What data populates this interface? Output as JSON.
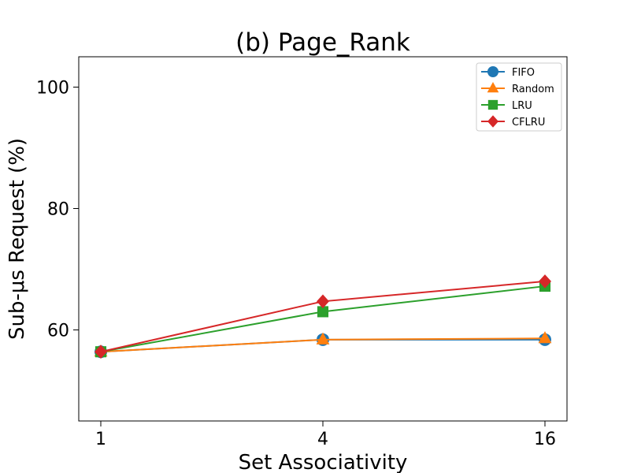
{
  "chart_data": {
    "type": "line",
    "title": "(b) Page_Rank",
    "xlabel": "Set Associativity",
    "ylabel": "Sub-μs Request (%)",
    "x": [
      "1",
      "4",
      "16"
    ],
    "ylim": [
      45,
      105
    ],
    "yticks": [
      60,
      80,
      100
    ],
    "legend_position": "top-right",
    "series": [
      {
        "name": "FIFO",
        "marker": "circle",
        "color": "#1f77b4",
        "values": [
          56.4,
          58.4,
          58.4
        ]
      },
      {
        "name": "Random",
        "marker": "triangle",
        "color": "#ff7f0e",
        "values": [
          56.4,
          58.4,
          58.6
        ]
      },
      {
        "name": "LRU",
        "marker": "square",
        "color": "#2ca02c",
        "values": [
          56.4,
          63.0,
          67.2
        ]
      },
      {
        "name": "CFLRU",
        "marker": "diamond",
        "color": "#d62728",
        "values": [
          56.4,
          64.7,
          68.0
        ]
      }
    ]
  }
}
